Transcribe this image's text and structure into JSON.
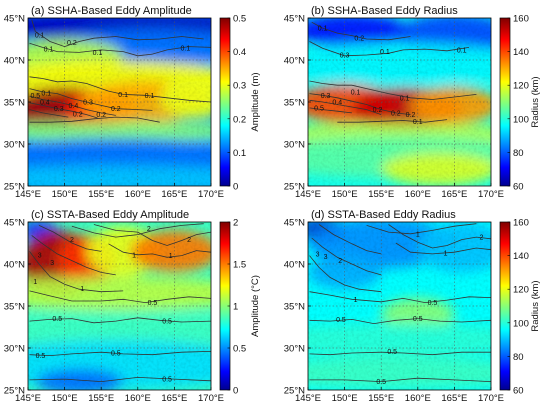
{
  "figure": {
    "lon_ticks": [
      "145°E",
      "150°E",
      "155°E",
      "160°E",
      "165°E",
      "170°E"
    ],
    "lat_ticks": [
      "45°N",
      "40°N",
      "35°N",
      "30°N",
      "25°N"
    ]
  },
  "chart_data": [
    {
      "type": "heatmap",
      "title": "(a) SSHA-Based Eddy Amplitude",
      "colorbar_label": "Amplitude (m)",
      "colorbar_ticks": [
        "0.5",
        "0.4",
        "0.3",
        "0.2",
        "0.1",
        "0"
      ],
      "clim": [
        0,
        0.5
      ],
      "xlim": [
        145,
        170
      ],
      "ylim": [
        25,
        45
      ],
      "contour_labels": [
        "0.1",
        "0.1",
        "0.2",
        "0.1",
        "0.1",
        "0.1",
        "0.2",
        "0.3",
        "0.4",
        "0.5",
        "0.4",
        "0.3",
        "0.2",
        "0.2",
        "0.1",
        "0.1"
      ],
      "grid": true
    },
    {
      "type": "heatmap",
      "title": "(b) SSHA-Based Eddy Radius",
      "colorbar_label": "Radius (km)",
      "colorbar_ticks": [
        "160",
        "140",
        "120",
        "100",
        "80",
        "60"
      ],
      "clim": [
        60,
        160
      ],
      "xlim": [
        145,
        170
      ],
      "ylim": [
        25,
        45
      ],
      "contour_labels": [
        "0.1",
        "0.2",
        "0.3",
        "0.1",
        "0.1",
        "0.3",
        "0.4",
        "0.5",
        "0.2",
        "0.1",
        "0.2",
        "0.2",
        "0.1",
        "0.1"
      ],
      "grid": true
    },
    {
      "type": "heatmap",
      "title": "(c) SSTA-Based Eddy Amplitude",
      "colorbar_label": "Amplitude (°C)",
      "colorbar_ticks": [
        "2",
        "1.5",
        "1",
        "0.5",
        "0"
      ],
      "clim": [
        0,
        2
      ],
      "xlim": [
        145,
        170
      ],
      "ylim": [
        25,
        45
      ],
      "contour_labels": [
        "3",
        "3",
        "2",
        "1",
        "2",
        "1",
        "2",
        "1",
        "1",
        "0.5",
        "0.5",
        "0.5",
        "0.5",
        "0.5",
        "0.5"
      ],
      "grid": true
    },
    {
      "type": "heatmap",
      "title": "(d) SSTA-Based Eddy Radius",
      "colorbar_label": "Radius (km)",
      "colorbar_ticks": [
        "160",
        "140",
        "120",
        "100",
        "80",
        "60"
      ],
      "clim": [
        60,
        160
      ],
      "xlim": [
        145,
        170
      ],
      "ylim": [
        25,
        45
      ],
      "contour_labels": [
        "3",
        "2",
        "3",
        "1",
        "2",
        "1",
        "1",
        "0.5",
        "0.5",
        "0.5",
        "0.5",
        "0.5"
      ],
      "grid": true
    }
  ]
}
